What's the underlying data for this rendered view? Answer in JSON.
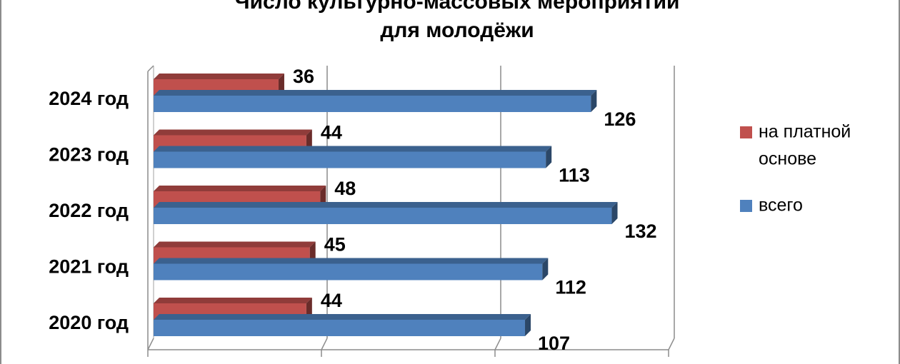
{
  "chart_data": {
    "type": "bar",
    "orientation": "horizontal",
    "title_lines": [
      "Число культурно-массовых мероприятий",
      "для молодёжи"
    ],
    "categories": [
      "2024 год",
      "2023 год",
      "2022 год",
      "2021 год",
      "2020 год"
    ],
    "series": [
      {
        "name": "на платной основе",
        "values": [
          36,
          44,
          48,
          45,
          44
        ],
        "color": "#C0504D"
      },
      {
        "name": "всего",
        "values": [
          126,
          113,
          132,
          112,
          107
        ],
        "color": "#4F81BD"
      }
    ],
    "legend_lines": [
      [
        "на платной",
        "основе"
      ],
      [
        "всего"
      ]
    ],
    "xlim": [
      0,
      150
    ],
    "grid": true,
    "legend_position": "right"
  }
}
